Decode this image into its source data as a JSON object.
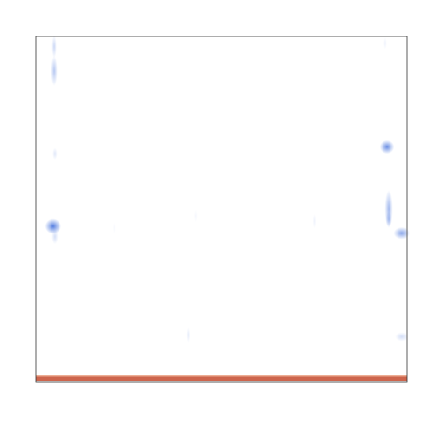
{
  "chart_data": {
    "type": "heatmap",
    "title": "",
    "xlabel": "",
    "ylabel": "",
    "grid": false,
    "legend": "none",
    "colors": {
      "low": "#2c5fd9",
      "high": "#c8543a",
      "edge": "#e89a7a",
      "background": "#ffffff",
      "frame": "#333333"
    },
    "x_range": [
      0,
      1
    ],
    "y_range": [
      0,
      1
    ],
    "hotspots": [
      {
        "x": 0.048,
        "y": 0.9,
        "value": -0.35,
        "sx": 0.004,
        "sy": 0.02
      },
      {
        "x": 0.048,
        "y": 0.97,
        "value": -0.25,
        "sx": 0.003,
        "sy": 0.015
      },
      {
        "x": 0.05,
        "y": 0.66,
        "value": -0.15,
        "sx": 0.003,
        "sy": 0.008
      },
      {
        "x": 0.045,
        "y": 0.45,
        "value": -0.8,
        "sx": 0.01,
        "sy": 0.01
      },
      {
        "x": 0.05,
        "y": 0.42,
        "value": -0.2,
        "sx": 0.004,
        "sy": 0.01
      },
      {
        "x": 0.945,
        "y": 0.68,
        "value": -0.7,
        "sx": 0.009,
        "sy": 0.009
      },
      {
        "x": 0.95,
        "y": 0.5,
        "value": -0.45,
        "sx": 0.005,
        "sy": 0.025
      },
      {
        "x": 0.95,
        "y": 0.47,
        "value": -0.3,
        "sx": 0.004,
        "sy": 0.01
      },
      {
        "x": 0.985,
        "y": 0.43,
        "value": -0.55,
        "sx": 0.01,
        "sy": 0.008
      },
      {
        "x": 0.985,
        "y": 0.13,
        "value": -0.2,
        "sx": 0.008,
        "sy": 0.006
      },
      {
        "x": 0.41,
        "y": 0.135,
        "value": -0.12,
        "sx": 0.002,
        "sy": 0.01
      },
      {
        "x": 0.75,
        "y": 0.465,
        "value": -0.08,
        "sx": 0.002,
        "sy": 0.01
      },
      {
        "x": 0.21,
        "y": 0.445,
        "value": -0.05,
        "sx": 0.002,
        "sy": 0.008
      },
      {
        "x": 0.43,
        "y": 0.48,
        "value": -0.05,
        "sx": 0.002,
        "sy": 0.008
      },
      {
        "x": 0.94,
        "y": 0.98,
        "value": -0.08,
        "sx": 0.002,
        "sy": 0.008
      }
    ],
    "bottom_band": {
      "y_from": 0.0,
      "y_to": 0.012,
      "value": 0.9
    }
  }
}
